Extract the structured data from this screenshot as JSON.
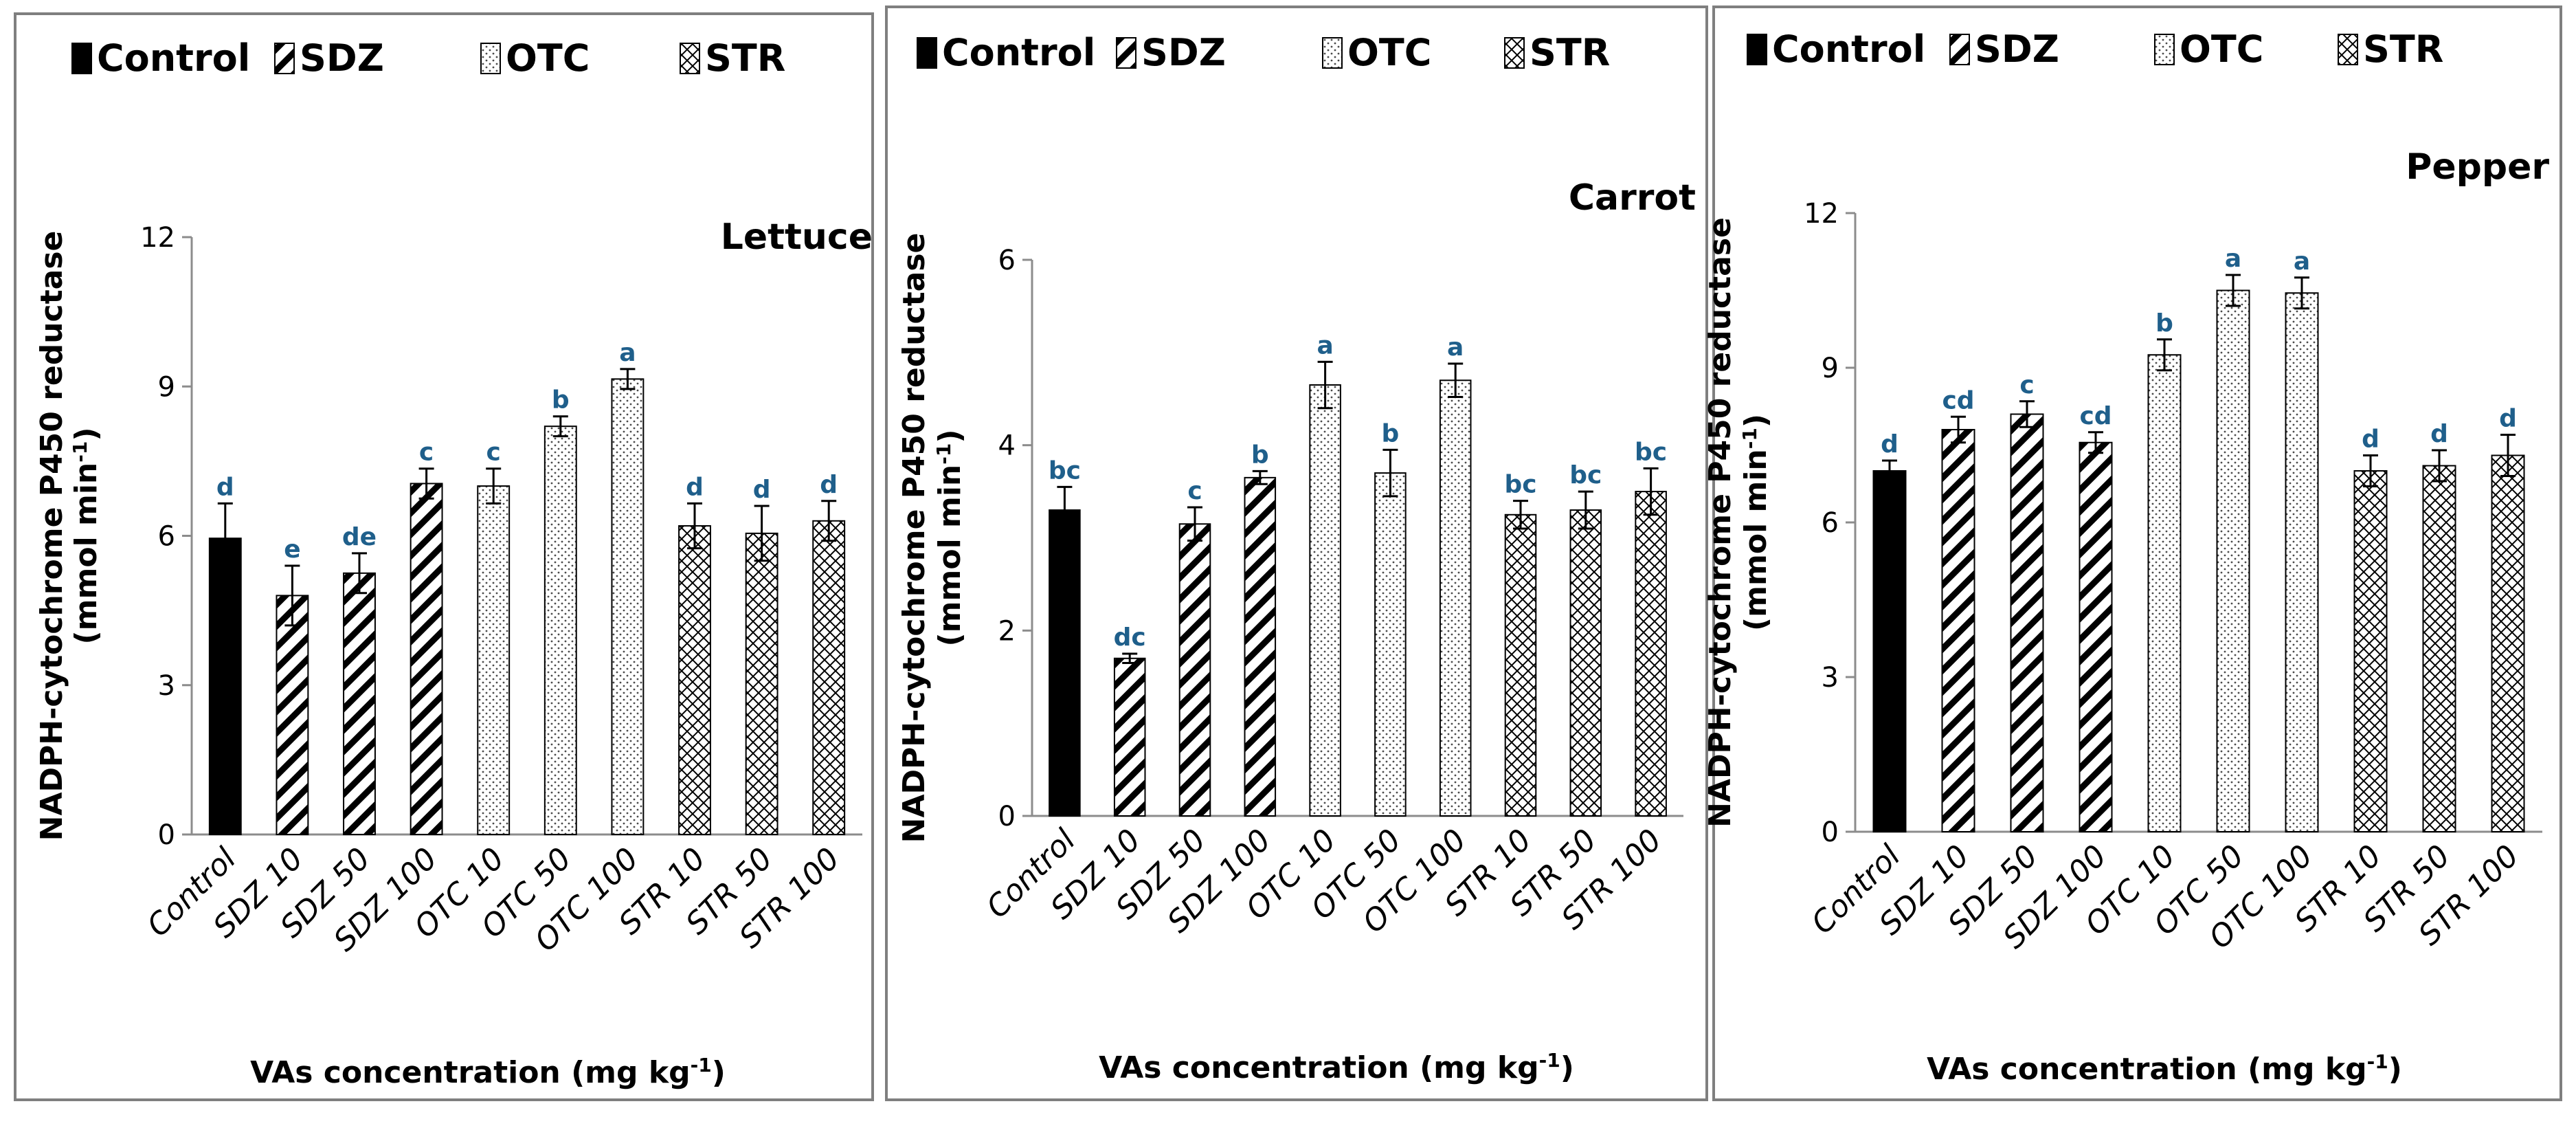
{
  "chart_data": [
    {
      "type": "bar",
      "title": "Lettuce",
      "xlabel": "VAs concentration (mg kg",
      "xlabel_sup": "-1",
      "xlabel_end": ")",
      "ylabel_line1": "NADPH-cytochrome P450 reductase",
      "ylabel_line2": "(mmol min",
      "ylabel_sup": "-1",
      "ylabel_end": ")",
      "ylim": [
        0,
        12
      ],
      "yticks": [
        "0",
        "3",
        "6",
        "9",
        "12"
      ],
      "categories": [
        "Control",
        "SDZ 10",
        "SDZ 50",
        "SDZ 100",
        "OTC 10",
        "OTC 50",
        "OTC 100",
        "STR 10",
        "STR 50",
        "STR 100"
      ],
      "values": [
        5.95,
        4.8,
        5.25,
        7.05,
        7.0,
        8.2,
        9.15,
        6.2,
        6.05,
        6.3
      ],
      "errors": [
        0.7,
        0.6,
        0.4,
        0.3,
        0.35,
        0.2,
        0.2,
        0.45,
        0.55,
        0.4
      ],
      "letters": [
        "d",
        "e",
        "de",
        "c",
        "c",
        "b",
        "a",
        "d",
        "d",
        "d"
      ]
    },
    {
      "type": "bar",
      "title": "Carrot",
      "xlabel": "VAs concentration (mg kg",
      "xlabel_sup": "-1",
      "xlabel_end": ")",
      "ylabel_line1": "NADPH-cytochrome P450 reductase",
      "ylabel_line2": "(mmol min",
      "ylabel_sup": "-1",
      "ylabel_end": ")",
      "ylim": [
        0,
        6
      ],
      "yticks": [
        "0",
        "2",
        "4",
        "6"
      ],
      "categories": [
        "Control",
        "SDZ 10",
        "SDZ 50",
        "SDZ 100",
        "OTC 10",
        "OTC 50",
        "OTC 100",
        "STR 10",
        "STR 50",
        "STR 100"
      ],
      "values": [
        3.3,
        1.7,
        3.15,
        3.65,
        4.65,
        3.7,
        4.7,
        3.25,
        3.3,
        3.5
      ],
      "errors": [
        0.25,
        0.05,
        0.18,
        0.07,
        0.25,
        0.25,
        0.18,
        0.15,
        0.2,
        0.25
      ],
      "letters": [
        "bc",
        "dc",
        "c",
        "b",
        "a",
        "b",
        "a",
        "bc",
        "bc",
        "bc"
      ]
    },
    {
      "type": "bar",
      "title": "Pepper",
      "xlabel": "VAs concentration (mg kg",
      "xlabel_sup": "-1",
      "xlabel_end": ")",
      "ylabel_line1": "NADPH-cytochrome P450 reductase",
      "ylabel_line2": "(mmol min",
      "ylabel_sup": "-1",
      "ylabel_end": ")",
      "ylim": [
        0,
        12
      ],
      "yticks": [
        "0",
        "3",
        "6",
        "9",
        "12"
      ],
      "categories": [
        "Control",
        "SDZ 10",
        "SDZ 50",
        "SDZ 100",
        "OTC 10",
        "OTC 50",
        "OTC 100",
        "STR 10",
        "STR 50",
        "STR 100"
      ],
      "values": [
        7.0,
        7.8,
        8.1,
        7.55,
        9.25,
        10.5,
        10.45,
        7.0,
        7.1,
        7.3
      ],
      "errors": [
        0.2,
        0.25,
        0.25,
        0.2,
        0.3,
        0.3,
        0.3,
        0.3,
        0.3,
        0.4
      ],
      "letters": [
        "d",
        "cd",
        "c",
        "cd",
        "b",
        "a",
        "a",
        "d",
        "d",
        "d"
      ]
    }
  ],
  "legend": [
    "Control",
    "SDZ",
    "OTC",
    "STR"
  ],
  "colors": {
    "bar_outline": "#000000",
    "letter": "#1f5f8b",
    "axis": "#8c8c8c",
    "panel_border": "#7f7f7f",
    "text": "#000000"
  }
}
